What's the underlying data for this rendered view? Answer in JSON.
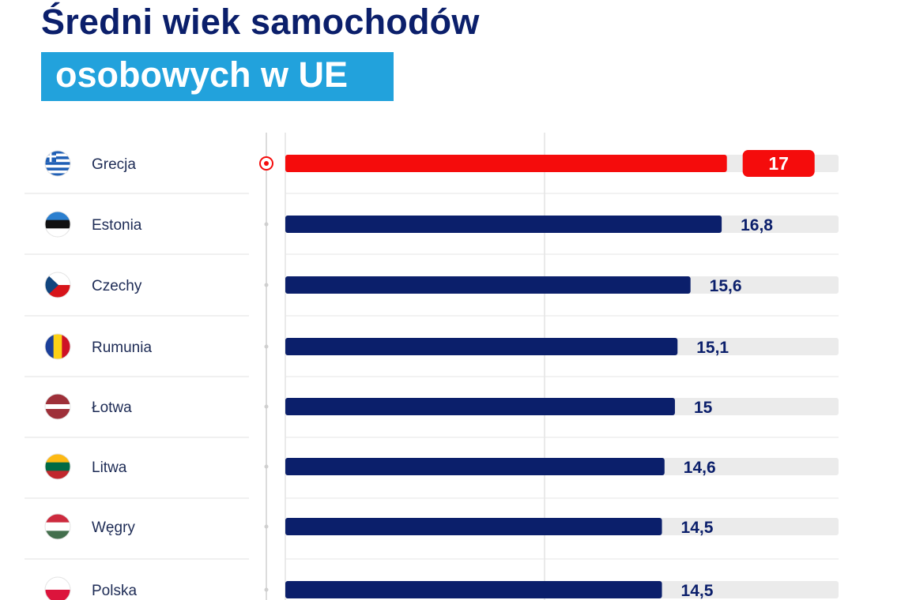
{
  "title": {
    "line1": "Średni wiek samochodów",
    "line2": "osobowych w UE"
  },
  "colors": {
    "title": "#0b1f6b",
    "title_highlight_bg": "#22a2dc",
    "bar_default": "#0b1f6b",
    "bar_highlight": "#f50c0c",
    "track": "#ebebeb"
  },
  "chart_data": {
    "type": "bar",
    "orientation": "horizontal",
    "categories": [
      "Grecja",
      "Estonia",
      "Czechy",
      "Rumunia",
      "Łotwa",
      "Litwa",
      "Węgry",
      "Polska"
    ],
    "values": [
      17,
      16.8,
      15.6,
      15.1,
      15,
      14.6,
      14.5,
      14.5
    ],
    "value_labels": [
      "17",
      "16,8",
      "15,6",
      "15,1",
      "15",
      "14,6",
      "14,5",
      "14,5"
    ],
    "highlight_index": 0,
    "xlim": [
      0,
      21.3
    ],
    "grid": true,
    "flags": [
      "flag-greece-icon",
      "flag-estonia-icon",
      "flag-czechia-icon",
      "flag-romania-icon",
      "flag-latvia-icon",
      "flag-lithuania-icon",
      "flag-hungary-icon",
      "flag-poland-icon"
    ]
  }
}
